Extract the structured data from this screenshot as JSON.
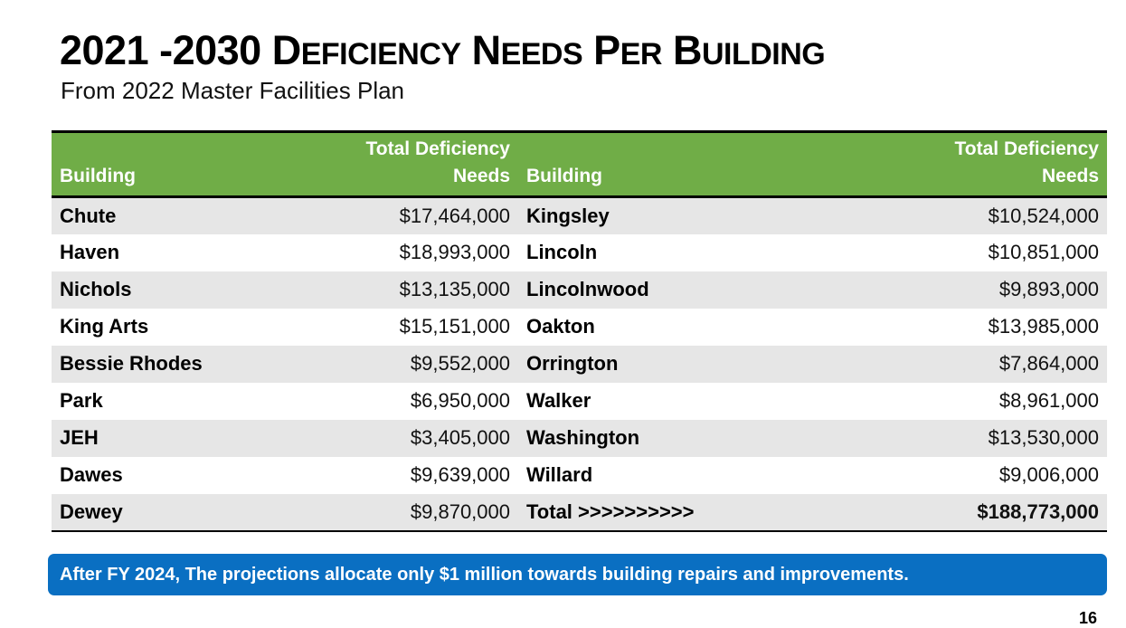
{
  "slide": {
    "title_parts": [
      "2021 -2030 ",
      "D",
      "EFICIENCY",
      " N",
      "EEDS",
      " P",
      "ER",
      " B",
      "UILDING"
    ],
    "subtitle": "From 2022 Master Facilities Plan",
    "page_number": "16"
  },
  "table": {
    "headers": {
      "building_left": "Building",
      "needs_left_line1": "Total Deficiency",
      "needs_left_line2": "Needs",
      "building_right": "Building",
      "needs_right_line1": "Total Deficiency",
      "needs_right_line2": "Needs"
    },
    "rows": [
      {
        "left_building": "Chute",
        "left_needs": "$17,464,000",
        "right_building": "Kingsley",
        "right_needs": "$10,524,000"
      },
      {
        "left_building": "Haven",
        "left_needs": "$18,993,000",
        "right_building": "Lincoln",
        "right_needs": "$10,851,000"
      },
      {
        "left_building": "Nichols",
        "left_needs": "$13,135,000",
        "right_building": "Lincolnwood",
        "right_needs": "$9,893,000"
      },
      {
        "left_building": "King Arts",
        "left_needs": "$15,151,000",
        "right_building": "Oakton",
        "right_needs": "$13,985,000"
      },
      {
        "left_building": "Bessie Rhodes",
        "left_needs": "$9,552,000",
        "right_building": "Orrington",
        "right_needs": "$7,864,000"
      },
      {
        "left_building": "Park",
        "left_needs": "$6,950,000",
        "right_building": "Walker",
        "right_needs": "$8,961,000"
      },
      {
        "left_building": "JEH",
        "left_needs": "$3,405,000",
        "right_building": "Washington",
        "right_needs": "$13,530,000"
      },
      {
        "left_building": "Dawes",
        "left_needs": "$9,639,000",
        "right_building": "Willard",
        "right_needs": "$9,006,000"
      },
      {
        "left_building": "Dewey",
        "left_needs": "$9,870,000",
        "right_building": "Total >>>>>>>>>>",
        "right_needs": "$188,773,000"
      }
    ]
  },
  "banner": {
    "text": "After FY 2024, The projections allocate only $1 million towards building repairs and improvements."
  },
  "colors": {
    "header_green": "#70ad47",
    "stripe_gray": "#e6e6e6",
    "banner_blue": "#0a6fc2"
  }
}
